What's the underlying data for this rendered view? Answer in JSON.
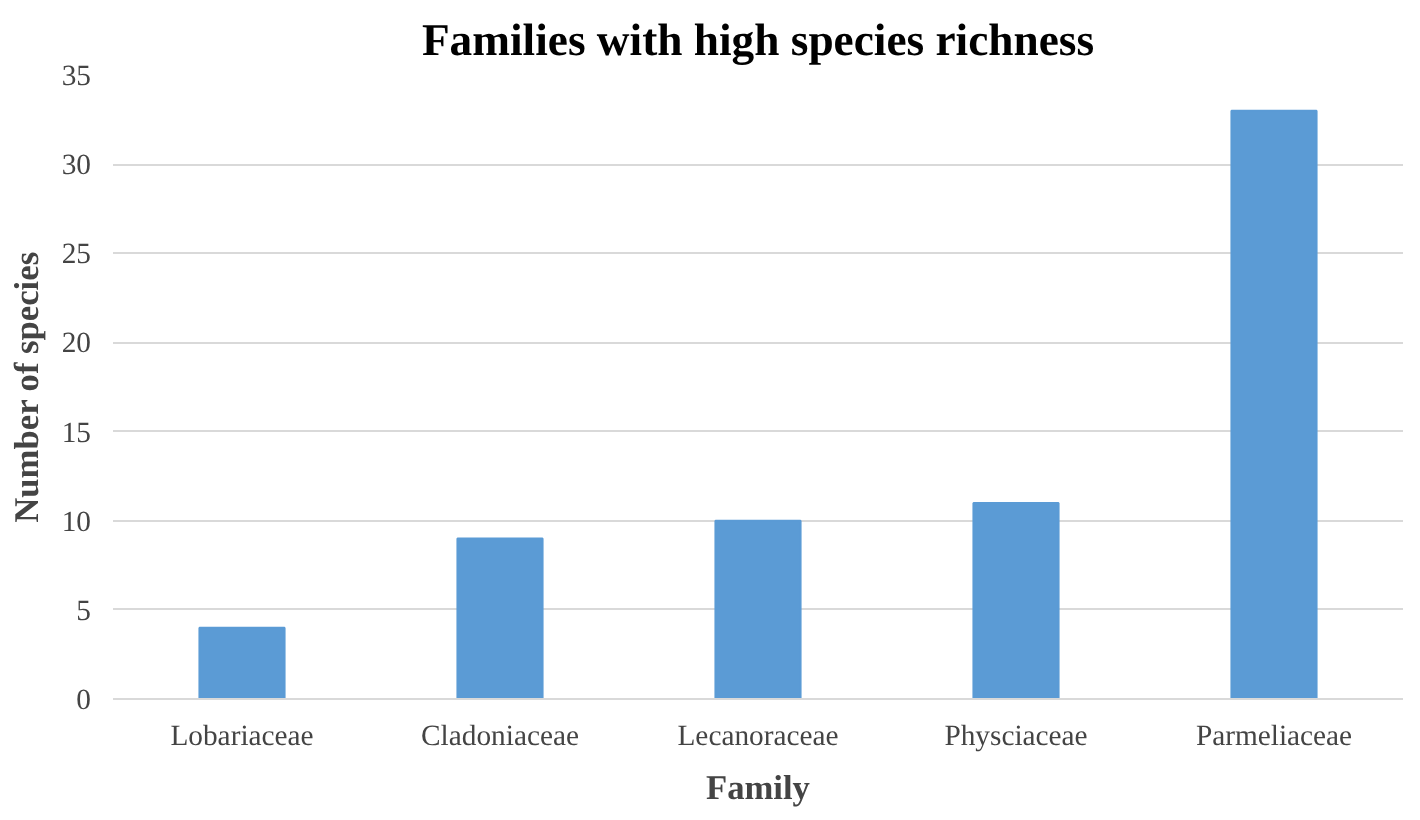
{
  "chart_data": {
    "type": "bar",
    "title": "Families with high species richness",
    "xlabel": "Family",
    "ylabel": "Number of species",
    "categories": [
      "Lobariaceae",
      "Cladoniaceae",
      "Lecanoraceae",
      "Physciaceae",
      "Parmeliaceae"
    ],
    "values": [
      4,
      9,
      10,
      11,
      33
    ],
    "color": "#5b9bd5",
    "ylim": [
      0,
      35
    ],
    "yticks": [
      0,
      5,
      10,
      15,
      20,
      25,
      30,
      35
    ],
    "grid": "y"
  }
}
